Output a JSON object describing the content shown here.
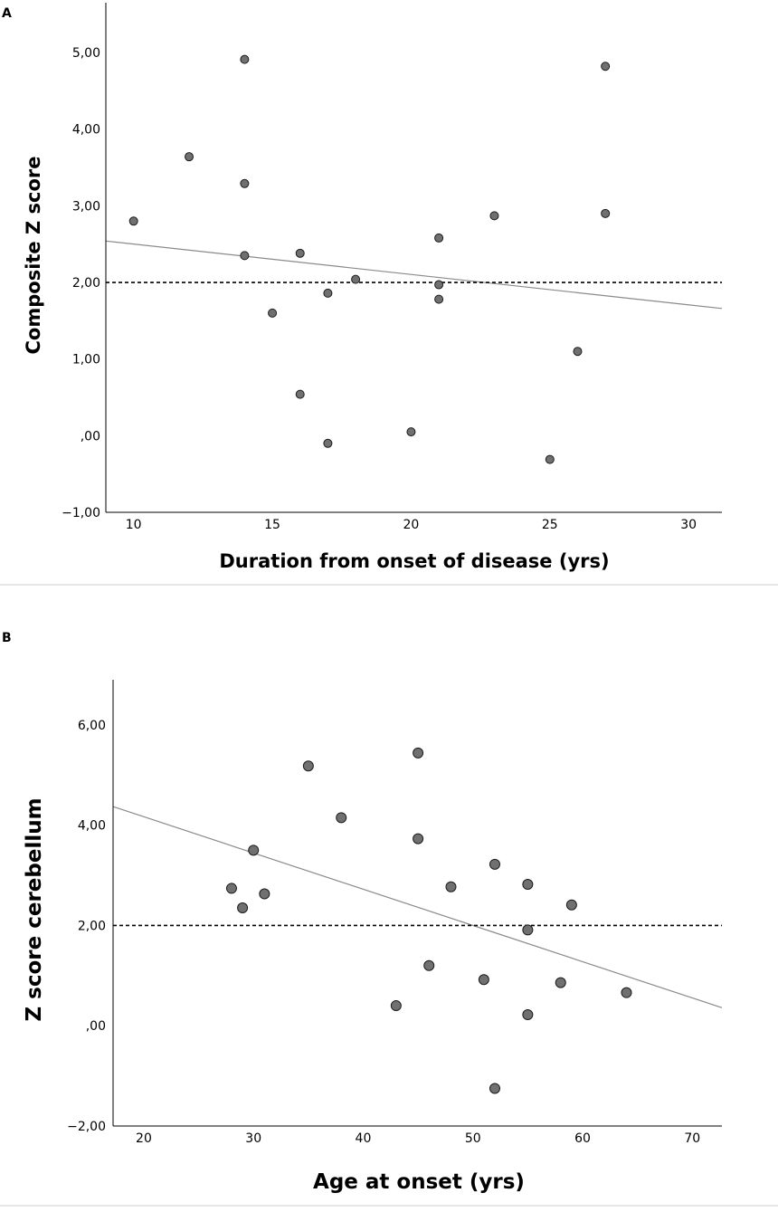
{
  "chart_data": [
    {
      "panel_label": "A",
      "type": "scatter",
      "title": "",
      "xlabel": "Duration from onset of disease (yrs)",
      "ylabel": "Composite Z score",
      "xlim": [
        9,
        31.2
      ],
      "ylim": [
        -1,
        5.65
      ],
      "xticks": [
        10,
        15,
        20,
        25,
        30
      ],
      "xtick_labels": [
        "10",
        "15",
        "20",
        "25",
        "30"
      ],
      "yticks": [
        -1,
        0,
        1,
        2,
        3,
        4,
        5
      ],
      "ytick_labels": [
        "−1,00",
        ",00",
        "1,00",
        "2,00",
        "3,00",
        "4,00",
        "5,00"
      ],
      "points": [
        {
          "x": 10,
          "y": 2.8
        },
        {
          "x": 12,
          "y": 3.64
        },
        {
          "x": 14,
          "y": 4.91
        },
        {
          "x": 14,
          "y": 3.29
        },
        {
          "x": 14,
          "y": 2.35
        },
        {
          "x": 15,
          "y": 1.6
        },
        {
          "x": 16,
          "y": 2.38
        },
        {
          "x": 16,
          "y": 0.54
        },
        {
          "x": 17,
          "y": 1.86
        },
        {
          "x": 17,
          "y": -0.1
        },
        {
          "x": 18,
          "y": 2.04
        },
        {
          "x": 20,
          "y": 0.05
        },
        {
          "x": 21,
          "y": 2.58
        },
        {
          "x": 21,
          "y": 1.97
        },
        {
          "x": 21,
          "y": 1.78
        },
        {
          "x": 23,
          "y": 2.87
        },
        {
          "x": 25,
          "y": -0.31
        },
        {
          "x": 26,
          "y": 1.1
        },
        {
          "x": 27,
          "y": 4.82
        },
        {
          "x": 27,
          "y": 2.9
        }
      ],
      "fit_line": {
        "x": [
          9,
          31.2
        ],
        "y": [
          2.54,
          1.66
        ]
      },
      "reference_line_y": 2
    },
    {
      "panel_label": "B",
      "type": "scatter",
      "title": "",
      "xlabel": "Age at onset (yrs)",
      "ylabel": "Z score cerebellum",
      "xlim": [
        17.2,
        72.7
      ],
      "ylim": [
        -2,
        6.9
      ],
      "xticks": [
        20,
        30,
        40,
        50,
        60,
        70
      ],
      "xtick_labels": [
        "20",
        "30",
        "40",
        "50",
        "60",
        "70"
      ],
      "yticks": [
        -2,
        0,
        2,
        4,
        6
      ],
      "ytick_labels": [
        "−2,00",
        ",00",
        "2,00",
        "4,00",
        "6,00"
      ],
      "points": [
        {
          "x": 28,
          "y": 2.74
        },
        {
          "x": 29,
          "y": 2.35
        },
        {
          "x": 30,
          "y": 3.5
        },
        {
          "x": 31,
          "y": 2.63
        },
        {
          "x": 35,
          "y": 5.18
        },
        {
          "x": 38,
          "y": 4.15
        },
        {
          "x": 43,
          "y": 0.4
        },
        {
          "x": 45,
          "y": 5.44
        },
        {
          "x": 45,
          "y": 3.73
        },
        {
          "x": 46,
          "y": 1.2
        },
        {
          "x": 48,
          "y": 2.77
        },
        {
          "x": 51,
          "y": 0.92
        },
        {
          "x": 52,
          "y": 3.22
        },
        {
          "x": 52,
          "y": -1.25
        },
        {
          "x": 55,
          "y": 2.82
        },
        {
          "x": 55,
          "y": 1.91
        },
        {
          "x": 55,
          "y": 0.22
        },
        {
          "x": 58,
          "y": 0.86
        },
        {
          "x": 59,
          "y": 2.41
        },
        {
          "x": 64,
          "y": 0.66
        }
      ],
      "fit_line": {
        "x": [
          17.2,
          72.7
        ],
        "y": [
          4.37,
          0.36
        ]
      },
      "reference_line_y": 2
    }
  ]
}
